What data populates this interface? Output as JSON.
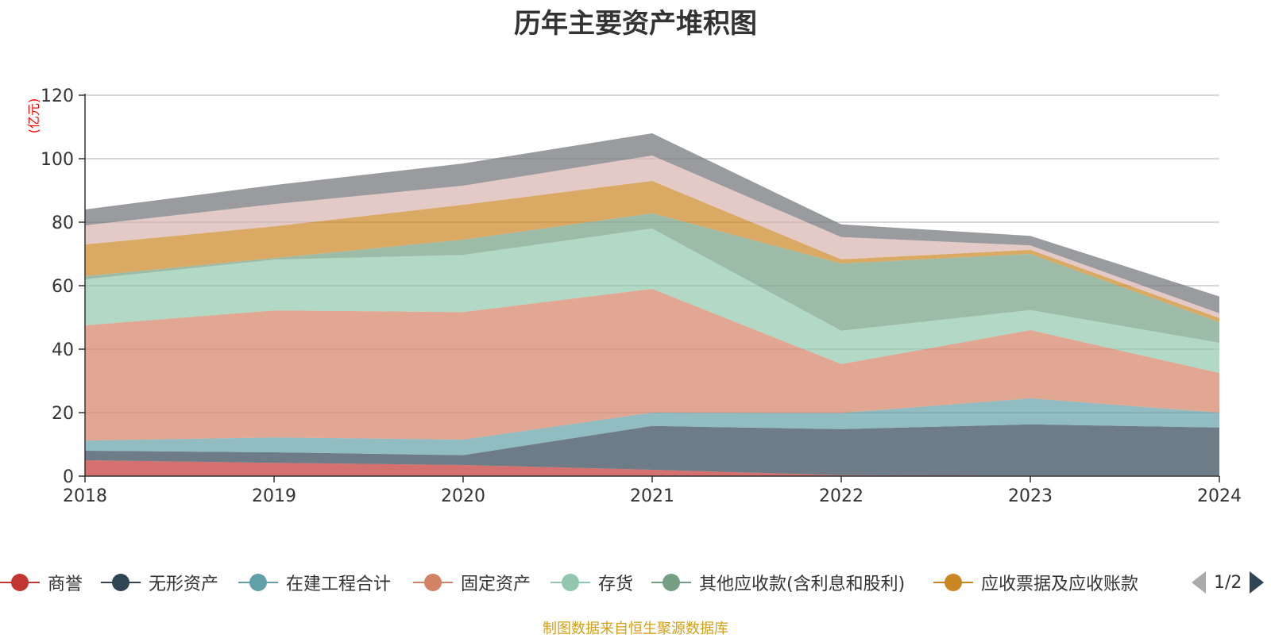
{
  "title": "历年主要资产堆积图",
  "unit_label": "(亿元)",
  "source_note": "制图数据来自恒生聚源数据库",
  "pager": {
    "text": "1/2"
  },
  "legend": [
    {
      "name": "商誉",
      "color": "#c23531"
    },
    {
      "name": "无形资产",
      "color": "#2f4554"
    },
    {
      "name": "在建工程合计",
      "color": "#61a0a8"
    },
    {
      "name": "固定资产",
      "color": "#d48265"
    },
    {
      "name": "存货",
      "color": "#91c7ae"
    },
    {
      "name": "其他应收款(含利息和股利)",
      "color": "#749f83"
    },
    {
      "name": "应收票据及应收账款",
      "color": "#ca8622"
    }
  ],
  "chart_data": {
    "type": "area",
    "stacked": true,
    "title": "历年主要资产堆积图",
    "ylabel": "(亿元)",
    "x": [
      "2018",
      "2019",
      "2020",
      "2021",
      "2022",
      "2023",
      "2024"
    ],
    "ylim": [
      0,
      120
    ],
    "yticks": [
      0,
      20,
      40,
      60,
      80,
      100,
      120
    ],
    "grid": true,
    "legend_position": "bottom",
    "series": [
      {
        "name": "商誉",
        "color": "#c23531",
        "values": [
          5.0,
          4.2,
          3.5,
          2.0,
          0.3,
          0.2,
          0.2
        ]
      },
      {
        "name": "无形资产",
        "color": "#2f4554",
        "values": [
          3.0,
          3.3,
          3.1,
          13.8,
          14.5,
          16.1,
          15.1
        ]
      },
      {
        "name": "在建工程合计",
        "color": "#61a0a8",
        "values": [
          3.2,
          4.7,
          4.9,
          4.2,
          5.1,
          8.2,
          4.7
        ]
      },
      {
        "name": "固定资产",
        "color": "#d48265",
        "values": [
          36.3,
          40.0,
          40.2,
          39.0,
          15.4,
          21.5,
          12.5
        ]
      },
      {
        "name": "存货",
        "color": "#91c7ae",
        "values": [
          14.5,
          16.0,
          18.0,
          19.0,
          10.5,
          6.3,
          9.5
        ]
      },
      {
        "name": "其他应收款(含利息和股利)",
        "color": "#749f83",
        "values": [
          1.0,
          0.5,
          4.8,
          4.8,
          21.2,
          17.7,
          6.5
        ]
      },
      {
        "name": "应收票据及应收账款",
        "color": "#ca8622",
        "values": [
          10.0,
          10.0,
          11.0,
          10.2,
          1.3,
          1.3,
          1.3
        ]
      },
      {
        "color": "#d9b3ae",
        "values": [
          6.0,
          7.0,
          6.0,
          8.0,
          7.0,
          1.4,
          1.5
        ]
      },
      {
        "color": "#6f7076",
        "values": [
          5.0,
          6.0,
          7.0,
          7.0,
          4.0,
          3.0,
          5.3
        ]
      }
    ]
  }
}
